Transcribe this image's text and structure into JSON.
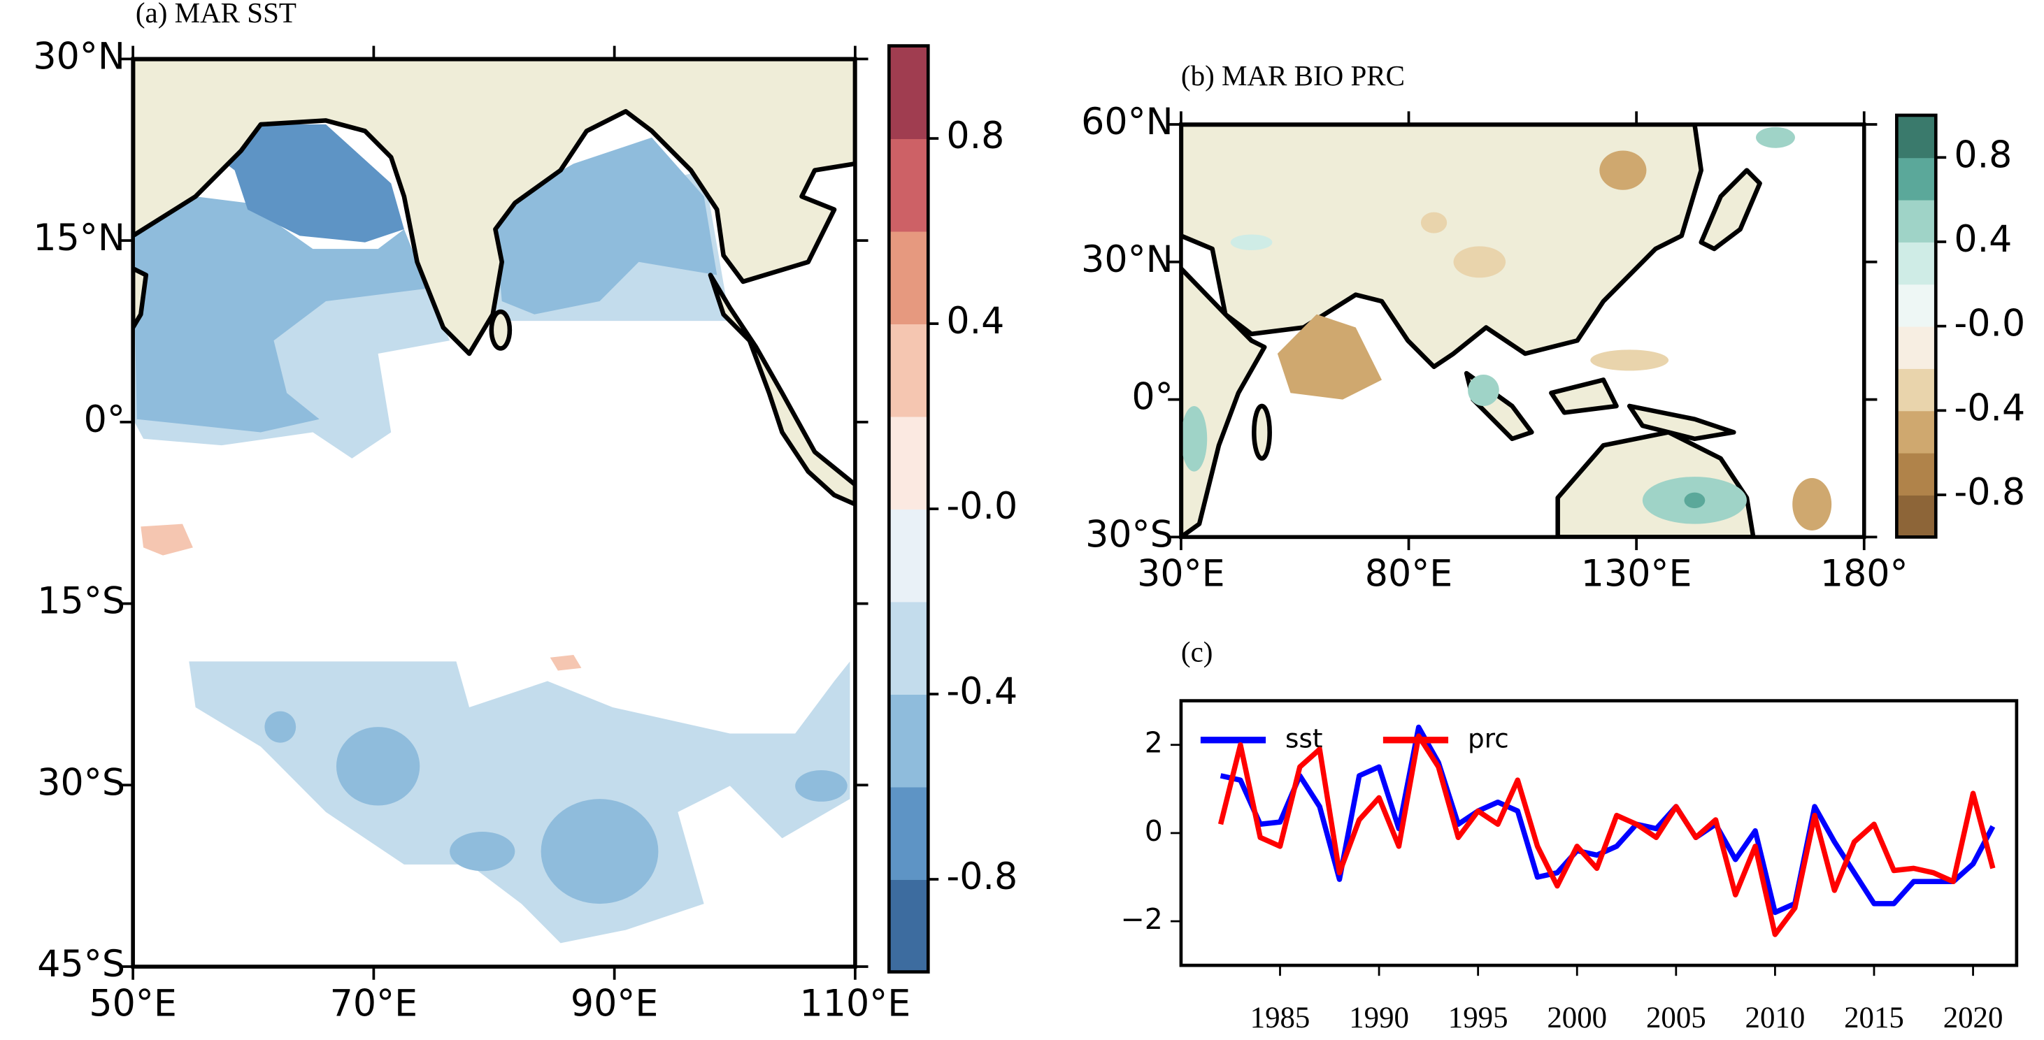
{
  "chart_data": [
    {
      "type": "map",
      "title": "(a) MAR SST",
      "xlim": [
        50,
        110
      ],
      "ylim": [
        -45,
        30
      ],
      "xticks": [
        {
          "value": 50,
          "label": "50°E"
        },
        {
          "value": 70,
          "label": "70°E"
        },
        {
          "value": 90,
          "label": "90°E"
        },
        {
          "value": 110,
          "label": "110°E"
        }
      ],
      "yticks": [
        {
          "value": 30,
          "label": "30°N"
        },
        {
          "value": 15,
          "label": "15°N"
        },
        {
          "value": 0,
          "label": "0°"
        },
        {
          "value": -15,
          "label": "15°S"
        },
        {
          "value": -30,
          "label": "30°S"
        },
        {
          "value": -45,
          "label": "45°S"
        }
      ],
      "colorbar": {
        "clim": [
          -1,
          1
        ],
        "colors": [
          "#3d6c9f",
          "#5e94c5",
          "#8fbcdc",
          "#c3dcec",
          "#e9f1f7",
          "#fbe9e1",
          "#f5c6b1",
          "#e6997f",
          "#cd6166",
          "#a03d50"
        ],
        "ticks": [
          -0.8,
          -0.4,
          {
            "value": 0,
            "label": "-0.0"
          },
          0.4,
          0.8
        ]
      }
    },
    {
      "type": "map",
      "title": "(b) MAR BIO PRC",
      "xlim": [
        30,
        180
      ],
      "ylim": [
        -30,
        60
      ],
      "xticks": [
        {
          "value": 30,
          "label": "30°E"
        },
        {
          "value": 80,
          "label": "80°E"
        },
        {
          "value": 130,
          "label": "130°E"
        },
        {
          "value": 180,
          "label": "180°"
        }
      ],
      "yticks": [
        {
          "value": 60,
          "label": "60°N"
        },
        {
          "value": 30,
          "label": "30°N"
        },
        {
          "value": 0,
          "label": "0°"
        },
        {
          "value": -30,
          "label": "30°S"
        }
      ],
      "colorbar": {
        "clim": [
          -1,
          1
        ],
        "colors": [
          "#8d6538",
          "#b0834a",
          "#cfa86f",
          "#e9d4ac",
          "#f7eee2",
          "#eef7f5",
          "#cfece6",
          "#9fd3c7",
          "#5ba89a",
          "#3a7a6c"
        ],
        "ticks": [
          -0.8,
          -0.4,
          {
            "value": 0,
            "label": "-0.0"
          },
          0.4,
          0.8
        ]
      }
    },
    {
      "type": "line",
      "title": "(c)",
      "legend": "upper left",
      "grid": false,
      "x": [
        1982,
        1983,
        1984,
        1985,
        1986,
        1987,
        1988,
        1989,
        1990,
        1991,
        1992,
        1993,
        1994,
        1995,
        1996,
        1997,
        1998,
        1999,
        2000,
        2001,
        2002,
        2003,
        2004,
        2005,
        2006,
        2007,
        2008,
        2009,
        2010,
        2011,
        2012,
        2013,
        2014,
        2015,
        2016,
        2017,
        2018,
        2019,
        2020,
        2021
      ],
      "xlim": [
        1980,
        2022.2
      ],
      "ylim": [
        -3,
        3
      ],
      "xticks": [
        1985,
        1990,
        1995,
        2000,
        2005,
        2010,
        2015,
        2020
      ],
      "yticks": [
        {
          "value": -2,
          "label": "−2"
        },
        0,
        2
      ],
      "series": [
        {
          "name": "sst",
          "color": "#0000ff",
          "values": [
            1.3,
            1.2,
            0.2,
            0.25,
            1.3,
            0.6,
            -1.05,
            1.3,
            1.5,
            0.1,
            2.4,
            1.6,
            0.2,
            0.5,
            0.7,
            0.5,
            -1.0,
            -0.9,
            -0.4,
            -0.5,
            -0.3,
            0.2,
            0.1,
            0.6,
            -0.1,
            0.2,
            -0.6,
            0.05,
            -1.8,
            -1.6,
            0.6,
            -0.2,
            -0.9,
            -1.6,
            -1.6,
            -1.1,
            -1.1,
            -1.1,
            -0.7,
            0.15
          ]
        },
        {
          "name": "prc",
          "color": "#ff0000",
          "values": [
            0.2,
            2.0,
            -0.1,
            -0.3,
            1.5,
            1.9,
            -0.9,
            0.3,
            0.8,
            -0.3,
            2.2,
            1.5,
            -0.1,
            0.5,
            0.2,
            1.2,
            -0.3,
            -1.2,
            -0.3,
            -0.8,
            0.4,
            0.2,
            -0.1,
            0.6,
            -0.1,
            0.3,
            -1.4,
            -0.3,
            -2.3,
            -1.7,
            0.4,
            -1.3,
            -0.2,
            0.2,
            -0.85,
            -0.8,
            -0.9,
            -1.1,
            0.9,
            -0.8
          ]
        }
      ]
    }
  ]
}
